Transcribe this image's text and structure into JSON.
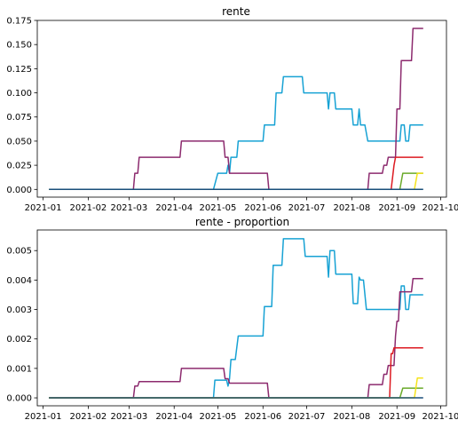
{
  "chart_data": [
    {
      "type": "line",
      "title": "rente",
      "xlabel": "",
      "ylabel": "",
      "x_ticks": [
        "2021-01",
        "2021-02",
        "2021-03",
        "2021-04",
        "2021-05",
        "2021-06",
        "2021-07",
        "2021-08",
        "2021-09",
        "2021-10"
      ],
      "y_ticks": [
        "0.000",
        "0.025",
        "0.050",
        "0.075",
        "0.100",
        "0.125",
        "0.150",
        "0.175"
      ],
      "xlim": [
        "2020-12-28",
        "2021-10-05"
      ],
      "ylim": [
        -0.008,
        0.175
      ],
      "grid": false,
      "series": [
        {
          "color": "#17a2d4",
          "points": [
            [
              "2021-01-05",
              0
            ],
            [
              "2021-04-28",
              0
            ],
            [
              "2021-05-01",
              0.0167
            ],
            [
              "2021-05-07",
              0.0167
            ],
            [
              "2021-05-08",
              0.025
            ],
            [
              "2021-05-09",
              0.0167
            ],
            [
              "2021-05-10",
              0.0333
            ],
            [
              "2021-05-14",
              0.0333
            ],
            [
              "2021-05-15",
              0.05
            ],
            [
              "2021-06-01",
              0.05
            ],
            [
              "2021-06-02",
              0.0667
            ],
            [
              "2021-06-09",
              0.0667
            ],
            [
              "2021-06-10",
              0.1
            ],
            [
              "2021-06-14",
              0.1
            ],
            [
              "2021-06-15",
              0.1167
            ],
            [
              "2021-06-28",
              0.1167
            ],
            [
              "2021-06-29",
              0.1
            ],
            [
              "2021-07-15",
              0.1
            ],
            [
              "2021-07-16",
              0.0833
            ],
            [
              "2021-07-17",
              0.1
            ],
            [
              "2021-07-20",
              0.1
            ],
            [
              "2021-07-21",
              0.0833
            ],
            [
              "2021-08-01",
              0.0833
            ],
            [
              "2021-08-02",
              0.0667
            ],
            [
              "2021-08-05",
              0.0667
            ],
            [
              "2021-08-06",
              0.0833
            ],
            [
              "2021-08-07",
              0.0667
            ],
            [
              "2021-08-10",
              0.0667
            ],
            [
              "2021-08-12",
              0.05
            ],
            [
              "2021-09-03",
              0.05
            ],
            [
              "2021-09-04",
              0.0667
            ],
            [
              "2021-09-06",
              0.0667
            ],
            [
              "2021-09-07",
              0.05
            ],
            [
              "2021-09-09",
              0.05
            ],
            [
              "2021-09-10",
              0.0667
            ],
            [
              "2021-09-19",
              0.0667
            ]
          ]
        },
        {
          "color": "#8c2a6e",
          "points": [
            [
              "2021-01-05",
              0
            ],
            [
              "2021-03-04",
              0
            ],
            [
              "2021-03-05",
              0.0167
            ],
            [
              "2021-03-07",
              0.0167
            ],
            [
              "2021-03-08",
              0.0333
            ],
            [
              "2021-04-05",
              0.0333
            ],
            [
              "2021-04-06",
              0.05
            ],
            [
              "2021-05-05",
              0.05
            ],
            [
              "2021-05-06",
              0.0333
            ],
            [
              "2021-05-08",
              0.0333
            ],
            [
              "2021-05-09",
              0.0167
            ],
            [
              "2021-06-04",
              0.0167
            ],
            [
              "2021-06-05",
              0
            ],
            [
              "2021-08-12",
              0
            ],
            [
              "2021-08-13",
              0.0167
            ],
            [
              "2021-08-22",
              0.0167
            ],
            [
              "2021-08-23",
              0.025
            ],
            [
              "2021-08-25",
              0.025
            ],
            [
              "2021-08-26",
              0.0333
            ],
            [
              "2021-08-31",
              0.0333
            ],
            [
              "2021-09-01",
              0.0833
            ],
            [
              "2021-09-03",
              0.0833
            ],
            [
              "2021-09-04",
              0.1333
            ],
            [
              "2021-09-11",
              0.1333
            ],
            [
              "2021-09-12",
              0.1667
            ],
            [
              "2021-09-19",
              0.1667
            ]
          ]
        },
        {
          "color": "#dd1a21",
          "points": [
            [
              "2021-01-05",
              0
            ],
            [
              "2021-08-28",
              0
            ],
            [
              "2021-08-30",
              0.025
            ],
            [
              "2021-08-31",
              0.0333
            ],
            [
              "2021-09-19",
              0.0333
            ]
          ]
        },
        {
          "color": "#6aaa2a",
          "points": [
            [
              "2021-01-05",
              0
            ],
            [
              "2021-09-03",
              0
            ],
            [
              "2021-09-05",
              0.0167
            ],
            [
              "2021-09-19",
              0.0167
            ]
          ]
        },
        {
          "color": "#f5e31b",
          "points": [
            [
              "2021-01-05",
              0
            ],
            [
              "2021-09-13",
              0
            ],
            [
              "2021-09-15",
              0.0167
            ],
            [
              "2021-09-19",
              0.0167
            ]
          ]
        },
        {
          "color": "#1a4f7a",
          "points": [
            [
              "2021-01-05",
              0
            ],
            [
              "2021-09-19",
              0
            ]
          ]
        }
      ]
    },
    {
      "type": "line",
      "title": "rente - proportion",
      "xlabel": "",
      "ylabel": "",
      "x_ticks": [
        "2021-01",
        "2021-02",
        "2021-03",
        "2021-04",
        "2021-05",
        "2021-06",
        "2021-07",
        "2021-08",
        "2021-09",
        "2021-10"
      ],
      "y_ticks": [
        "0.000",
        "0.001",
        "0.002",
        "0.003",
        "0.004",
        "0.005"
      ],
      "xlim": [
        "2020-12-28",
        "2021-10-05"
      ],
      "ylim": [
        -0.00027,
        0.0057
      ],
      "grid": false,
      "series": [
        {
          "color": "#17a2d4",
          "points": [
            [
              "2021-01-05",
              0
            ],
            [
              "2021-04-28",
              0
            ],
            [
              "2021-04-29",
              0.0006
            ],
            [
              "2021-05-07",
              0.0006
            ],
            [
              "2021-05-08",
              0.0004
            ],
            [
              "2021-05-09",
              0.00065
            ],
            [
              "2021-05-10",
              0.0013
            ],
            [
              "2021-05-13",
              0.0013
            ],
            [
              "2021-05-15",
              0.0021
            ],
            [
              "2021-06-01",
              0.0021
            ],
            [
              "2021-06-02",
              0.0031
            ],
            [
              "2021-06-07",
              0.0031
            ],
            [
              "2021-06-08",
              0.0045
            ],
            [
              "2021-06-14",
              0.0045
            ],
            [
              "2021-06-15",
              0.0054
            ],
            [
              "2021-06-29",
              0.0054
            ],
            [
              "2021-06-30",
              0.0048
            ],
            [
              "2021-07-15",
              0.0048
            ],
            [
              "2021-07-16",
              0.0041
            ],
            [
              "2021-07-17",
              0.005
            ],
            [
              "2021-07-20",
              0.005
            ],
            [
              "2021-07-21",
              0.0042
            ],
            [
              "2021-08-01",
              0.0042
            ],
            [
              "2021-08-02",
              0.0032
            ],
            [
              "2021-08-05",
              0.0032
            ],
            [
              "2021-08-06",
              0.0041
            ],
            [
              "2021-08-07",
              0.004
            ],
            [
              "2021-08-09",
              0.004
            ],
            [
              "2021-08-11",
              0.003
            ],
            [
              "2021-09-03",
              0.003
            ],
            [
              "2021-09-04",
              0.0038
            ],
            [
              "2021-09-06",
              0.0038
            ],
            [
              "2021-09-07",
              0.003
            ],
            [
              "2021-09-09",
              0.003
            ],
            [
              "2021-09-10",
              0.0035
            ],
            [
              "2021-09-19",
              0.0035
            ]
          ]
        },
        {
          "color": "#8c2a6e",
          "points": [
            [
              "2021-01-05",
              0
            ],
            [
              "2021-03-04",
              0
            ],
            [
              "2021-03-05",
              0.0004
            ],
            [
              "2021-03-07",
              0.0004
            ],
            [
              "2021-03-08",
              0.00055
            ],
            [
              "2021-04-05",
              0.00055
            ],
            [
              "2021-04-06",
              0.001
            ],
            [
              "2021-05-05",
              0.001
            ],
            [
              "2021-05-06",
              0.00065
            ],
            [
              "2021-05-08",
              0.00065
            ],
            [
              "2021-05-09",
              0.0005
            ],
            [
              "2021-06-04",
              0.0005
            ],
            [
              "2021-06-05",
              0
            ],
            [
              "2021-08-12",
              0
            ],
            [
              "2021-08-13",
              0.00045
            ],
            [
              "2021-08-22",
              0.00045
            ],
            [
              "2021-08-23",
              0.0008
            ],
            [
              "2021-08-25",
              0.0008
            ],
            [
              "2021-08-26",
              0.0011
            ],
            [
              "2021-08-30",
              0.0011
            ],
            [
              "2021-08-31",
              0.0021
            ],
            [
              "2021-09-01",
              0.0026
            ],
            [
              "2021-09-02",
              0.0026
            ],
            [
              "2021-09-03",
              0.0036
            ],
            [
              "2021-09-11",
              0.0036
            ],
            [
              "2021-09-12",
              0.00405
            ],
            [
              "2021-09-19",
              0.00405
            ]
          ]
        },
        {
          "color": "#dd1a21",
          "points": [
            [
              "2021-01-05",
              0
            ],
            [
              "2021-08-27",
              0
            ],
            [
              "2021-08-28",
              0.0015
            ],
            [
              "2021-08-29",
              0.0015
            ],
            [
              "2021-08-30",
              0.0017
            ],
            [
              "2021-09-19",
              0.0017
            ]
          ]
        },
        {
          "color": "#6aaa2a",
          "points": [
            [
              "2021-01-05",
              0
            ],
            [
              "2021-09-03",
              0
            ],
            [
              "2021-09-05",
              0.00033
            ],
            [
              "2021-09-19",
              0.00033
            ]
          ]
        },
        {
          "color": "#f5e31b",
          "points": [
            [
              "2021-01-05",
              0
            ],
            [
              "2021-09-13",
              0
            ],
            [
              "2021-09-15",
              0.00067
            ],
            [
              "2021-09-19",
              0.00067
            ]
          ]
        },
        {
          "color": "#1a4f7a",
          "points": [
            [
              "2021-01-05",
              0
            ],
            [
              "2021-09-19",
              0
            ]
          ]
        }
      ]
    }
  ]
}
